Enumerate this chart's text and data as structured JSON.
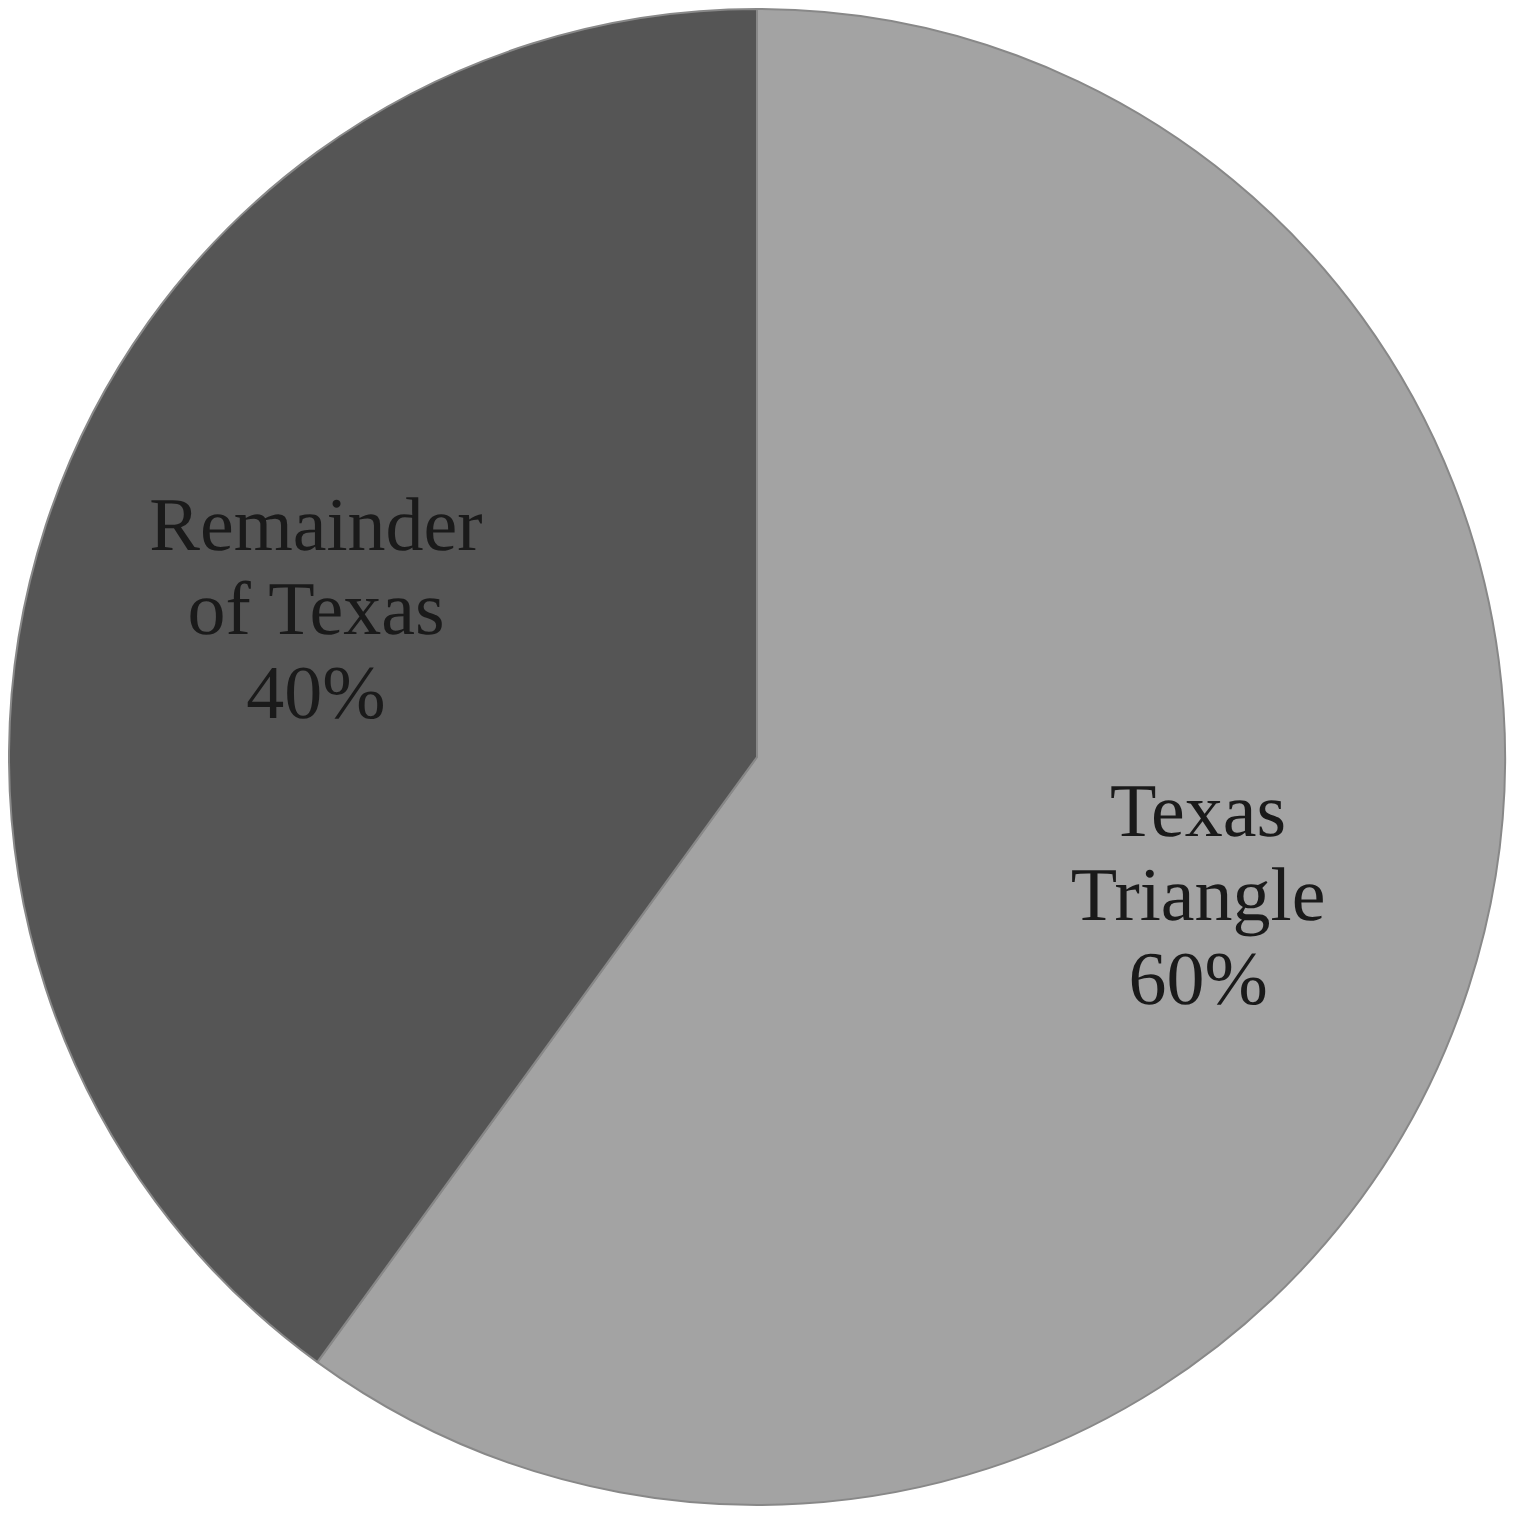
{
  "chart_data": {
    "type": "pie",
    "categories": [
      "Texas Triangle",
      "Remainder of Texas"
    ],
    "values": [
      60,
      40
    ],
    "colors": [
      "#a3a3a3",
      "#555555"
    ],
    "value_labels": [
      "60%",
      "40%"
    ],
    "legend": false
  }
}
